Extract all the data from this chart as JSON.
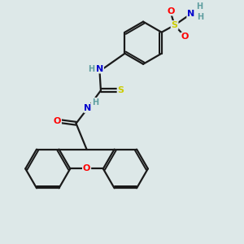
{
  "background_color": "#dde8e8",
  "bond_color": "#1a1a1a",
  "atom_colors": {
    "O": "#ff0000",
    "N": "#0000cd",
    "S": "#cccc00",
    "H": "#5f9ea0",
    "C": "#1a1a1a"
  },
  "figsize": [
    3.0,
    3.0
  ],
  "dpi": 100,
  "lw": 1.6
}
